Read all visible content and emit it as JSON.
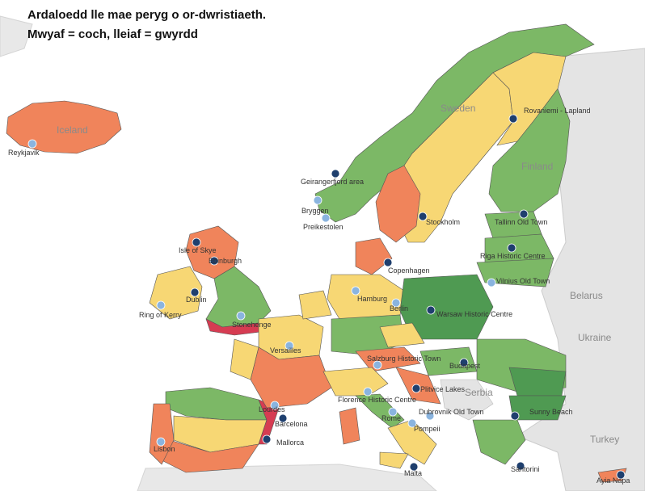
{
  "title": {
    "line1": "Ardaloedd lle mae peryg o or-dwristiaeth.",
    "line2": "Mwyaf = coch, lleiaf = gwyrdd"
  },
  "colors": {
    "high": "#f0845b",
    "medium": "#f7d774",
    "low": "#7cb866",
    "lowest": "#4f9a52",
    "very_high": "#d63c52",
    "land_outside": "#e4e4e4",
    "border": "#555555",
    "marker_dark": "#1f3f6e",
    "marker_light": "#8ab4df"
  },
  "country_labels": {
    "sweden": "Sweden",
    "finland": "Finland",
    "belarus": "Belarus",
    "ukraine": "Ukraine",
    "turkey": "Turkey",
    "serbia": "Serbia",
    "iceland": "Iceland"
  },
  "places": [
    {
      "name": "Reykjavik",
      "type": "light"
    },
    {
      "name": "Rovaniemi - Lapland",
      "type": "dark"
    },
    {
      "name": "Geirangerfjord area",
      "type": "dark"
    },
    {
      "name": "Bryggen",
      "type": "light"
    },
    {
      "name": "Preikestolen",
      "type": "light"
    },
    {
      "name": "Stockholm",
      "type": "dark"
    },
    {
      "name": "Tallinn Old Town",
      "type": "dark"
    },
    {
      "name": "Riga Historic Centre",
      "type": "dark"
    },
    {
      "name": "Vilnius Old Town",
      "type": "light"
    },
    {
      "name": "Isle of Skye",
      "type": "dark"
    },
    {
      "name": "Edinburgh",
      "type": "dark"
    },
    {
      "name": "Dublin",
      "type": "dark"
    },
    {
      "name": "Ring of Kerry",
      "type": "light"
    },
    {
      "name": "Stonehenge",
      "type": "light"
    },
    {
      "name": "Copenhagen",
      "type": "dark"
    },
    {
      "name": "Hamburg",
      "type": "light"
    },
    {
      "name": "Berlin",
      "type": "light"
    },
    {
      "name": "Warsaw Historic Centre",
      "type": "dark"
    },
    {
      "name": "Versailles",
      "type": "light"
    },
    {
      "name": "Salzburg Historic Town",
      "type": "light"
    },
    {
      "name": "Budapest",
      "type": "dark"
    },
    {
      "name": "Plitvice Lakes",
      "type": "dark"
    },
    {
      "name": "Florence Historic Centre",
      "type": "light"
    },
    {
      "name": "Lourdes",
      "type": "light"
    },
    {
      "name": "Dubrovnik Old Town",
      "type": "light"
    },
    {
      "name": "Sunny Beach",
      "type": "dark"
    },
    {
      "name": "Barcelona",
      "type": "dark"
    },
    {
      "name": "Rome",
      "type": "light"
    },
    {
      "name": "Mallorca",
      "type": "dark"
    },
    {
      "name": "Lisbon",
      "type": "light"
    },
    {
      "name": "Pompeii",
      "type": "light"
    },
    {
      "name": "Santorini",
      "type": "dark"
    },
    {
      "name": "Malta",
      "type": "dark"
    },
    {
      "name": "Ayia Napa",
      "type": "dark"
    }
  ]
}
